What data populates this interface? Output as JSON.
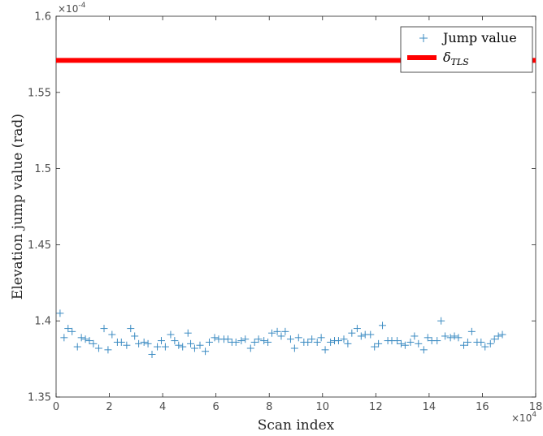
{
  "chart_data": {
    "type": "scatter",
    "xlabel": "Scan index",
    "ylabel": "Elevation jump value (rad)",
    "xlim": [
      0,
      18
    ],
    "ylim": [
      1.35,
      1.6
    ],
    "x_multiplier_label": "×10",
    "x_multiplier_exp": "4",
    "y_multiplier_label": "×10",
    "y_multiplier_exp": "-4",
    "x_ticks": [
      "0",
      "2",
      "4",
      "6",
      "8",
      "10",
      "12",
      "14",
      "16",
      "18"
    ],
    "y_ticks": [
      "1.35",
      "1.4",
      "1.45",
      "1.5",
      "1.55",
      "1.6"
    ],
    "grid": false,
    "legend_position": "top-right",
    "colors": {
      "scatter": "#3b8bc2",
      "threshold": "#ff0000"
    },
    "series": [
      {
        "name": "Jump value",
        "marker": "+",
        "x": [
          0.15,
          0.3,
          0.45,
          0.6,
          0.8,
          0.95,
          1.1,
          1.25,
          1.4,
          1.6,
          1.8,
          1.95,
          2.1,
          2.3,
          2.45,
          2.65,
          2.8,
          2.95,
          3.1,
          3.3,
          3.45,
          3.6,
          3.8,
          3.95,
          4.1,
          4.3,
          4.45,
          4.6,
          4.75,
          4.95,
          5.05,
          5.2,
          5.4,
          5.6,
          5.75,
          5.95,
          6.1,
          6.3,
          6.45,
          6.6,
          6.75,
          6.95,
          7.1,
          7.3,
          7.45,
          7.6,
          7.8,
          7.95,
          8.1,
          8.3,
          8.45,
          8.6,
          8.8,
          8.95,
          9.1,
          9.3,
          9.45,
          9.6,
          9.8,
          9.95,
          10.1,
          10.3,
          10.45,
          10.6,
          10.8,
          10.95,
          11.1,
          11.3,
          11.45,
          11.6,
          11.8,
          11.95,
          12.1,
          12.25,
          12.45,
          12.6,
          12.8,
          12.95,
          13.1,
          13.3,
          13.45,
          13.6,
          13.8,
          13.95,
          14.1,
          14.3,
          14.45,
          14.6,
          14.8,
          14.95,
          15.1,
          15.3,
          15.45,
          15.6,
          15.8,
          15.95,
          16.1,
          16.3,
          16.45,
          16.6,
          16.75
        ],
        "y": [
          1.405,
          1.389,
          1.395,
          1.393,
          1.383,
          1.389,
          1.388,
          1.387,
          1.385,
          1.382,
          1.395,
          1.381,
          1.391,
          1.386,
          1.386,
          1.384,
          1.395,
          1.39,
          1.385,
          1.386,
          1.385,
          1.378,
          1.383,
          1.387,
          1.383,
          1.391,
          1.387,
          1.384,
          1.383,
          1.392,
          1.385,
          1.382,
          1.384,
          1.38,
          1.386,
          1.389,
          1.388,
          1.388,
          1.388,
          1.386,
          1.386,
          1.387,
          1.388,
          1.382,
          1.386,
          1.388,
          1.387,
          1.386,
          1.392,
          1.393,
          1.39,
          1.393,
          1.388,
          1.382,
          1.389,
          1.386,
          1.386,
          1.388,
          1.386,
          1.389,
          1.381,
          1.386,
          1.387,
          1.387,
          1.388,
          1.385,
          1.392,
          1.395,
          1.39,
          1.391,
          1.391,
          1.383,
          1.385,
          1.397,
          1.387,
          1.387,
          1.387,
          1.385,
          1.384,
          1.386,
          1.39,
          1.385,
          1.381,
          1.389,
          1.387,
          1.387,
          1.4,
          1.39,
          1.389,
          1.39,
          1.389,
          1.384,
          1.386,
          1.393,
          1.386,
          1.386,
          1.383,
          1.385,
          1.388,
          1.39,
          1.391
        ]
      },
      {
        "name": "δ",
        "name_sub": "TLS",
        "marker": "line",
        "x": [
          0,
          18
        ],
        "y": [
          1.571,
          1.571
        ]
      }
    ]
  }
}
